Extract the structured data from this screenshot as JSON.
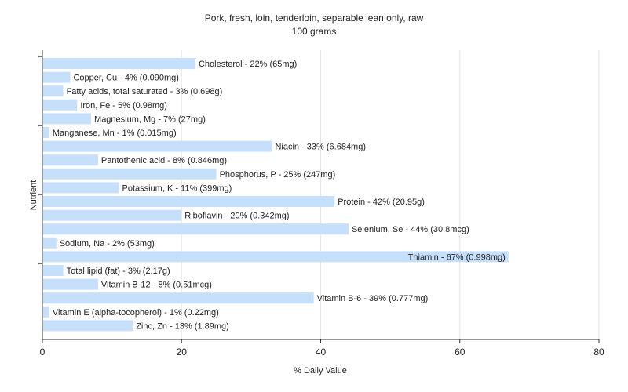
{
  "chart_data": {
    "type": "bar",
    "orientation": "horizontal",
    "title": "Pork, fresh, loin, tenderloin, separable lean only, raw",
    "subtitle": "100 grams",
    "xlabel": "% Daily Value",
    "ylabel": "Nutrient",
    "xlim": [
      0,
      80
    ],
    "xticks": [
      "0",
      "20",
      "40",
      "60",
      "80"
    ],
    "grid": true,
    "bar_color": "#c6dffb",
    "categories": [
      "Cholesterol",
      "Copper, Cu",
      "Fatty acids, total saturated",
      "Iron, Fe",
      "Magnesium, Mg",
      "Manganese, Mn",
      "Niacin",
      "Pantothenic acid",
      "Phosphorus, P",
      "Potassium, K",
      "Protein",
      "Riboflavin",
      "Selenium, Se",
      "Sodium, Na",
      "Thiamin",
      "Total lipid (fat)",
      "Vitamin B-12",
      "Vitamin B-6",
      "Vitamin E (alpha-tocopherol)",
      "Zinc, Zn"
    ],
    "values": [
      22,
      4,
      3,
      5,
      7,
      1,
      33,
      8,
      25,
      11,
      42,
      20,
      44,
      2,
      67,
      3,
      8,
      39,
      1,
      13
    ],
    "labels": [
      "Cholesterol - 22% (65mg)",
      "Copper, Cu - 4% (0.090mg)",
      "Fatty acids, total saturated - 3% (0.698g)",
      "Iron, Fe - 5% (0.98mg)",
      "Magnesium, Mg - 7% (27mg)",
      "Manganese, Mn - 1% (0.015mg)",
      "Niacin - 33% (6.684mg)",
      "Pantothenic acid - 8% (0.846mg)",
      "Phosphorus, P - 25% (247mg)",
      "Potassium, K - 11% (399mg)",
      "Protein - 42% (20.95g)",
      "Riboflavin - 20% (0.342mg)",
      "Selenium, Se - 44% (30.8mcg)",
      "Sodium, Na - 2% (53mg)",
      "Thiamin - 67% (0.998mg)",
      "Total lipid (fat) - 3% (2.17g)",
      "Vitamin B-12 - 8% (0.51mcg)",
      "Vitamin B-6 - 39% (0.777mg)",
      "Vitamin E (alpha-tocopherol) - 1% (0.22mg)",
      "Zinc, Zn - 13% (1.89mg)"
    ]
  }
}
